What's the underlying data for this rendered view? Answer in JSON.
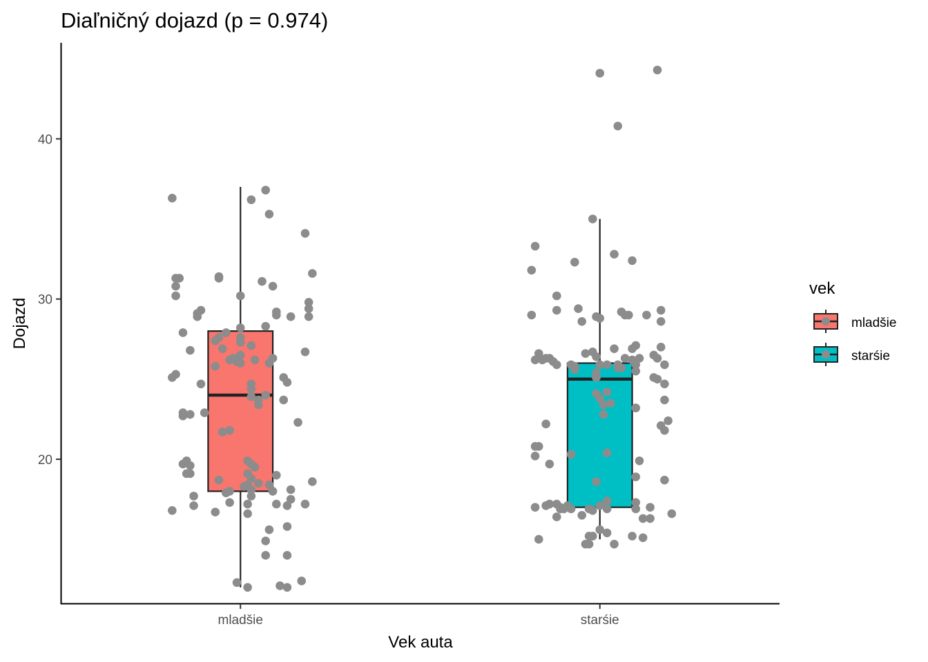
{
  "chart_data": {
    "type": "boxplot",
    "title": "Diaľničný dojazd (p = 0.974)",
    "xlabel": "Vek auta",
    "ylabel": "Dojazd",
    "categories": [
      "mladšie",
      "starśie"
    ],
    "ylim": [
      11,
      46
    ],
    "yticks": [
      20,
      30,
      40
    ],
    "grid": false,
    "legend": {
      "title": "vek",
      "position": "right",
      "entries": [
        "mladšie",
        "starśie"
      ]
    },
    "colors": {
      "mladšie": "#F8766D",
      "starśie": "#00BFC4",
      "points": "#8C8C8C",
      "box_line": "#222222",
      "axis": "#000000"
    },
    "boxes": [
      {
        "category": "mladšie",
        "min": 12,
        "q1": 18,
        "median": 24,
        "q3": 28,
        "max": 37
      },
      {
        "category": "starśie",
        "min": 15,
        "q1": 17,
        "median": 25,
        "q3": 26,
        "max": 35
      }
    ],
    "series": [
      {
        "category": "mladšie",
        "points": [
          [
            -0.19,
            36.3
          ],
          [
            -0.18,
            31.3
          ],
          [
            -0.17,
            31.3
          ],
          [
            -0.18,
            30.8
          ],
          [
            -0.18,
            30.2
          ],
          [
            -0.11,
            29.3
          ],
          [
            -0.12,
            29.1
          ],
          [
            -0.12,
            28.9
          ],
          [
            -0.16,
            27.9
          ],
          [
            -0.14,
            26.8
          ],
          [
            -0.11,
            24.7
          ],
          [
            -0.18,
            25.3
          ],
          [
            -0.19,
            25.1
          ],
          [
            -0.16,
            22.9
          ],
          [
            -0.16,
            22.7
          ],
          [
            -0.14,
            22.8
          ],
          [
            -0.1,
            22.9
          ],
          [
            -0.15,
            19.9
          ],
          [
            -0.16,
            19.7
          ],
          [
            -0.14,
            19.6
          ],
          [
            -0.15,
            19.1
          ],
          [
            -0.14,
            19.1
          ],
          [
            -0.13,
            17.7
          ],
          [
            -0.13,
            17.1
          ],
          [
            -0.19,
            16.8
          ],
          [
            -0.07,
            27.4
          ],
          [
            -0.06,
            27.6
          ],
          [
            -0.05,
            26.9
          ],
          [
            -0.07,
            25.8
          ],
          [
            -0.04,
            27.9
          ],
          [
            -0.03,
            26.2
          ],
          [
            -0.02,
            26.3
          ],
          [
            -0.01,
            26.1
          ],
          [
            -0.05,
            21.7
          ],
          [
            -0.03,
            21.8
          ],
          [
            -0.06,
            18.7
          ],
          [
            -0.04,
            17.9
          ],
          [
            -0.04,
            17.9
          ],
          [
            -0.03,
            18.0
          ],
          [
            -0.03,
            17.3
          ],
          [
            -0.07,
            16.7
          ],
          [
            -0.06,
            31.4
          ],
          [
            -0.06,
            31.3
          ],
          [
            0.0,
            30.2
          ],
          [
            0.0,
            28.2
          ],
          [
            0.0,
            27.6
          ],
          [
            0.0,
            27.3
          ],
          [
            0.0,
            26.5
          ],
          [
            0.0,
            26.0
          ],
          [
            0.03,
            27.1
          ],
          [
            0.04,
            26.2
          ],
          [
            0.03,
            24.7
          ],
          [
            0.03,
            24.4
          ],
          [
            0.03,
            23.9
          ],
          [
            0.05,
            23.7
          ],
          [
            0.05,
            23.4
          ],
          [
            0.07,
            24.0
          ],
          [
            0.08,
            26.0
          ],
          [
            0.09,
            26.3
          ],
          [
            0.02,
            19.9
          ],
          [
            0.03,
            19.7
          ],
          [
            0.04,
            19.5
          ],
          [
            0.02,
            19.1
          ],
          [
            0.03,
            18.8
          ],
          [
            0.02,
            18.4
          ],
          [
            0.03,
            18.1
          ],
          [
            0.05,
            18.5
          ],
          [
            0.01,
            18.3
          ],
          [
            0.03,
            17.7
          ],
          [
            0.02,
            17.2
          ],
          [
            0.02,
            16.6
          ],
          [
            -0.01,
            12.3
          ],
          [
            0.02,
            12.0
          ],
          [
            0.07,
            36.8
          ],
          [
            0.03,
            36.2
          ],
          [
            0.08,
            35.3
          ],
          [
            0.06,
            31.1
          ],
          [
            0.09,
            30.8
          ],
          [
            0.1,
            29.2
          ],
          [
            0.1,
            29.0
          ],
          [
            0.14,
            28.9
          ],
          [
            0.07,
            28.3
          ],
          [
            0.12,
            25.1
          ],
          [
            0.13,
            24.8
          ],
          [
            0.12,
            23.7
          ],
          [
            0.16,
            22.3
          ],
          [
            0.1,
            19.0
          ],
          [
            0.08,
            18.4
          ],
          [
            0.09,
            18.0
          ],
          [
            0.1,
            17.2
          ],
          [
            0.13,
            17.1
          ],
          [
            0.14,
            18.1
          ],
          [
            0.14,
            17.5
          ],
          [
            0.08,
            15.6
          ],
          [
            0.07,
            14.9
          ],
          [
            0.07,
            14.0
          ],
          [
            0.13,
            15.8
          ],
          [
            0.13,
            14.0
          ],
          [
            0.11,
            12.1
          ],
          [
            0.13,
            12.0
          ],
          [
            0.17,
            12.4
          ],
          [
            0.18,
            34.1
          ],
          [
            0.2,
            31.6
          ],
          [
            0.19,
            29.8
          ],
          [
            0.19,
            29.4
          ],
          [
            0.19,
            28.9
          ],
          [
            0.18,
            26.7
          ],
          [
            0.18,
            17.2
          ],
          [
            0.2,
            18.6
          ]
        ]
      },
      {
        "category": "starśie",
        "points": [
          [
            -0.18,
            33.3
          ],
          [
            -0.19,
            31.8
          ],
          [
            -0.19,
            29.0
          ],
          [
            -0.17,
            26.6
          ],
          [
            -0.18,
            26.2
          ],
          [
            -0.16,
            26.2
          ],
          [
            -0.15,
            26.3
          ],
          [
            -0.14,
            26.3
          ],
          [
            -0.13,
            26.1
          ],
          [
            -0.12,
            25.9
          ],
          [
            -0.18,
            20.8
          ],
          [
            -0.17,
            20.8
          ],
          [
            -0.18,
            20.2
          ],
          [
            -0.15,
            22.2
          ],
          [
            -0.14,
            19.7
          ],
          [
            -0.18,
            17.0
          ],
          [
            -0.15,
            17.1
          ],
          [
            -0.14,
            17.2
          ],
          [
            -0.12,
            17.2
          ],
          [
            -0.11,
            16.9
          ],
          [
            -0.12,
            16.4
          ],
          [
            -0.17,
            15.0
          ],
          [
            -0.12,
            30.2
          ],
          [
            -0.12,
            29.3
          ],
          [
            -0.07,
            32.3
          ],
          [
            -0.06,
            29.4
          ],
          [
            -0.05,
            28.6
          ],
          [
            -0.08,
            25.9
          ],
          [
            -0.07,
            25.8
          ],
          [
            -0.07,
            25.6
          ],
          [
            -0.08,
            16.9
          ],
          [
            -0.09,
            17.1
          ],
          [
            -0.1,
            16.9
          ],
          [
            -0.11,
            17.0
          ],
          [
            -0.03,
            16.9
          ],
          [
            -0.05,
            16.5
          ],
          [
            -0.08,
            20.3
          ],
          [
            -0.04,
            26.6
          ],
          [
            -0.02,
            26.7
          ],
          [
            -0.01,
            26.4
          ],
          [
            0.0,
            25.9
          ],
          [
            0.02,
            25.9
          ],
          [
            -0.01,
            25.4
          ],
          [
            -0.01,
            25.1
          ],
          [
            -0.02,
            35.0
          ],
          [
            -0.01,
            28.9
          ],
          [
            0.0,
            28.8
          ],
          [
            -0.01,
            24.1
          ],
          [
            0.0,
            23.8
          ],
          [
            0.01,
            23.4
          ],
          [
            0.03,
            23.5
          ],
          [
            0.02,
            24.2
          ],
          [
            0.01,
            22.8
          ],
          [
            0.02,
            20.4
          ],
          [
            0.0,
            17.1
          ],
          [
            -0.02,
            16.8
          ],
          [
            0.02,
            17.4
          ],
          [
            0.02,
            16.9
          ],
          [
            0.0,
            15.6
          ],
          [
            -0.03,
            15.2
          ],
          [
            -0.02,
            15.2
          ],
          [
            -0.04,
            14.7
          ],
          [
            -0.03,
            14.7
          ],
          [
            0.04,
            14.7
          ],
          [
            0.02,
            15.4
          ],
          [
            -0.01,
            18.6
          ],
          [
            0.0,
            44.1
          ],
          [
            0.05,
            40.8
          ],
          [
            0.04,
            32.8
          ],
          [
            0.04,
            26.9
          ],
          [
            0.05,
            25.9
          ],
          [
            0.05,
            25.7
          ],
          [
            0.06,
            25.7
          ],
          [
            0.07,
            26.3
          ],
          [
            0.09,
            26.2
          ],
          [
            0.06,
            29.2
          ],
          [
            0.07,
            29.0
          ],
          [
            0.08,
            29.0
          ],
          [
            0.09,
            26.9
          ],
          [
            0.1,
            27.1
          ],
          [
            0.11,
            26.3
          ],
          [
            0.1,
            25.9
          ],
          [
            0.1,
            25.5
          ],
          [
            0.1,
            23.2
          ],
          [
            0.11,
            19.9
          ],
          [
            0.1,
            18.9
          ],
          [
            0.1,
            17.3
          ],
          [
            0.1,
            16.9
          ],
          [
            0.12,
            16.3
          ],
          [
            0.14,
            16.3
          ],
          [
            0.12,
            15.1
          ],
          [
            0.09,
            15.2
          ],
          [
            0.14,
            17.0
          ],
          [
            0.17,
            29.3
          ],
          [
            0.13,
            29.0
          ],
          [
            0.15,
            25.1
          ],
          [
            0.16,
            25.0
          ],
          [
            0.16,
            26.3
          ],
          [
            0.15,
            26.5
          ],
          [
            0.17,
            27.0
          ],
          [
            0.18,
            25.9
          ],
          [
            0.18,
            24.7
          ],
          [
            0.18,
            23.7
          ],
          [
            0.17,
            22.1
          ],
          [
            0.18,
            21.8
          ],
          [
            0.19,
            22.4
          ],
          [
            0.18,
            18.7
          ],
          [
            0.2,
            16.6
          ],
          [
            0.17,
            28.6
          ],
          [
            0.16,
            44.3
          ],
          [
            0.09,
            32.4
          ]
        ]
      }
    ]
  }
}
